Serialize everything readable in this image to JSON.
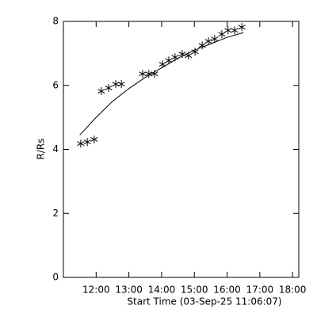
{
  "chart_data": {
    "type": "scatter",
    "xlabel": "Start Time (03-Sep-25 11:06:07)",
    "ylabel": "R/Rs",
    "xlim": [
      11,
      18.19
    ],
    "ylim": [
      0,
      8
    ],
    "xticks": [
      {
        "value": 12,
        "label": "12:00"
      },
      {
        "value": 13,
        "label": "13:00"
      },
      {
        "value": 14,
        "label": "14:00"
      },
      {
        "value": 15,
        "label": "15:00"
      },
      {
        "value": 16,
        "label": "16:00"
      },
      {
        "value": 17,
        "label": "17:00"
      },
      {
        "value": 18,
        "label": "18:00"
      }
    ],
    "yticks": [
      0,
      2,
      4,
      6,
      8
    ],
    "series": [
      {
        "style": "asterisk",
        "color": "#000000",
        "x": [
          11.53,
          11.73,
          11.94,
          12.16,
          12.38,
          12.6,
          12.77,
          13.42,
          13.61,
          13.78,
          14.03,
          14.22,
          14.41,
          14.63,
          14.82,
          15.02,
          15.24,
          15.43,
          15.62,
          15.84,
          16.03,
          16.23,
          16.45
        ],
        "values": [
          4.18,
          4.23,
          4.31,
          5.82,
          5.92,
          6.04,
          6.04,
          6.36,
          6.36,
          6.36,
          6.66,
          6.78,
          6.88,
          6.98,
          6.93,
          7.05,
          7.25,
          7.38,
          7.45,
          7.6,
          7.72,
          7.72,
          7.82
        ]
      },
      {
        "style": "line",
        "color": "#000000",
        "x": [
          11.5,
          12.0,
          12.5,
          13.0,
          13.5,
          14.0,
          14.5,
          15.0,
          15.5,
          16.0,
          16.5
        ],
        "values": [
          4.45,
          5.0,
          5.5,
          5.9,
          6.25,
          6.55,
          6.85,
          7.1,
          7.3,
          7.5,
          7.65
        ]
      }
    ]
  }
}
